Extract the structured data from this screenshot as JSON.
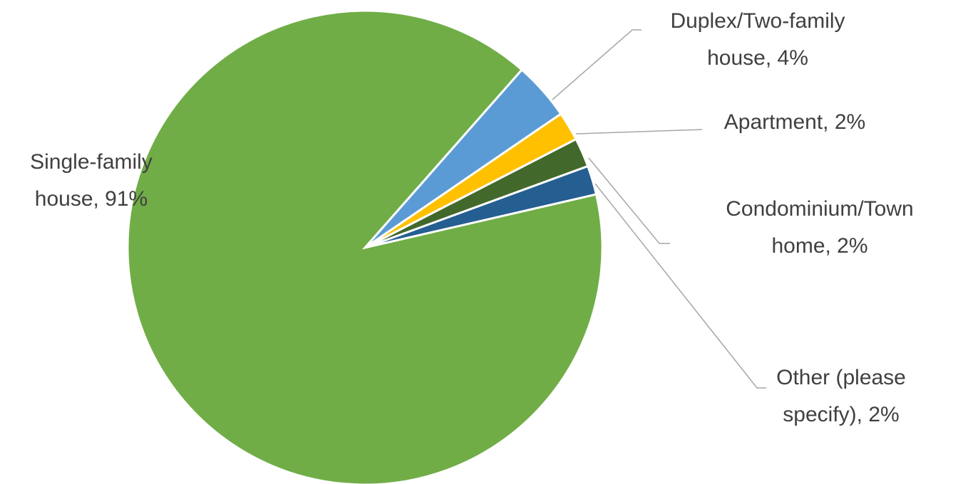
{
  "chart_data": {
    "type": "pie",
    "values": [
      91,
      4,
      2,
      2,
      2
    ],
    "value_labels": [
      "Single-family house, 91%",
      "Duplex/Two-family house, 4%",
      "Apartment, 2%",
      "Condominium/Town home, 2%",
      "Other (please specify), 2%"
    ],
    "colors": [
      "#70ad47",
      "#5b9bd5",
      "#ffc000",
      "#43682b",
      "#255e91"
    ]
  }
}
